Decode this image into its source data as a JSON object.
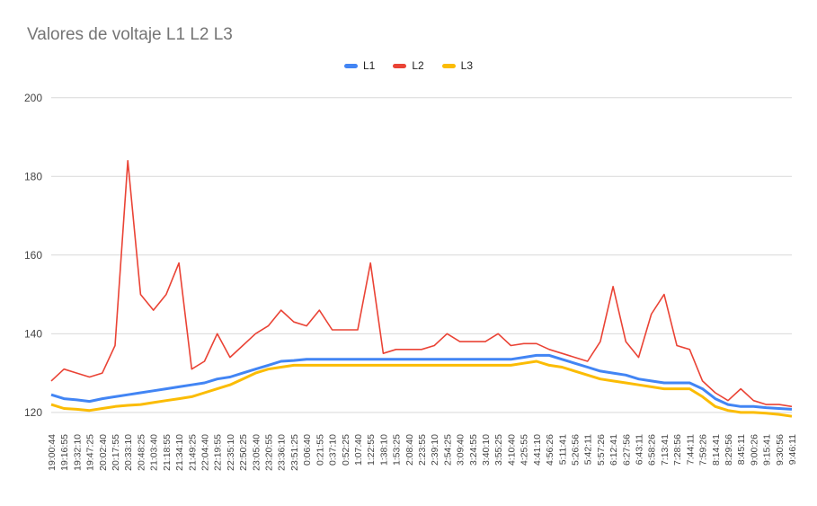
{
  "colors": {
    "L1": "#4285f4",
    "L2": "#ea4335",
    "L3": "#fbbc04",
    "grid": "#d9d9d9",
    "axis_text": "#444444"
  },
  "chart_data": {
    "type": "line",
    "title": "Valores de voltaje L1 L2 L3",
    "xlabel": "",
    "ylabel": "",
    "ylim": [
      117,
      202
    ],
    "yticks": [
      120,
      140,
      160,
      180,
      200
    ],
    "grid": true,
    "legend_position": "top-center",
    "x": [
      "19:00:44",
      "19:16:55",
      "19:32:10",
      "19:47:25",
      "20:02:40",
      "20:17:55",
      "20:33:10",
      "20:48:25",
      "21:03:40",
      "21:18:55",
      "21:34:10",
      "21:49:25",
      "22:04:40",
      "22:19:55",
      "22:35:10",
      "22:50:25",
      "23:05:40",
      "23:20:55",
      "23:36:10",
      "23:51:25",
      "0:06:40",
      "0:21:55",
      "0:37:10",
      "0:52:25",
      "1:07:40",
      "1:22:55",
      "1:38:10",
      "1:53:25",
      "2:08:40",
      "2:23:55",
      "2:39:10",
      "2:54:25",
      "3:09:40",
      "3:24:55",
      "3:40:10",
      "3:55:25",
      "4:10:40",
      "4:25:55",
      "4:41:10",
      "4:56:26",
      "5:11:41",
      "5:26:56",
      "5:42:11",
      "5:57:26",
      "6:12:41",
      "6:27:56",
      "6:43:11",
      "6:58:26",
      "7:13:41",
      "7:28:56",
      "7:44:11",
      "7:59:26",
      "8:14:41",
      "8:29:56",
      "8:45:11",
      "9:00:26",
      "9:15:41",
      "9:30:56",
      "9:46:11"
    ],
    "series": [
      {
        "name": "L1",
        "values": [
          124.5,
          123.5,
          123.2,
          122.8,
          123.5,
          124,
          124.5,
          125,
          125.5,
          126,
          126.5,
          127,
          127.5,
          128.5,
          129,
          130,
          131,
          132,
          133,
          133.2,
          133.5,
          133.5,
          133.5,
          133.5,
          133.5,
          133.5,
          133.5,
          133.5,
          133.5,
          133.5,
          133.5,
          133.5,
          133.5,
          133.5,
          133.5,
          133.5,
          133.5,
          134,
          134.5,
          134.5,
          133.5,
          132.5,
          131.5,
          130.5,
          130,
          129.5,
          128.5,
          128,
          127.5,
          127.5,
          127.5,
          126,
          123.5,
          122,
          121.5,
          121.5,
          121.2,
          121,
          120.8
        ]
      },
      {
        "name": "L2",
        "values": [
          128,
          131,
          130,
          129,
          130,
          137,
          184,
          150,
          146,
          150,
          158,
          131,
          133,
          140,
          134,
          137,
          140,
          142,
          146,
          143,
          142,
          146,
          141,
          141,
          141,
          158,
          135,
          136,
          136,
          136,
          137,
          140,
          138,
          138,
          138,
          140,
          137,
          137.5,
          137.5,
          136,
          135,
          134,
          133,
          138,
          152,
          138,
          134,
          145,
          150,
          137,
          136,
          128,
          125,
          123,
          126,
          123,
          122,
          122,
          121.5
        ]
      },
      {
        "name": "L3",
        "values": [
          122,
          121,
          120.8,
          120.5,
          121,
          121.5,
          121.8,
          122,
          122.5,
          123,
          123.5,
          124,
          125,
          126,
          127,
          128.5,
          130,
          131,
          131.5,
          132,
          132,
          132,
          132,
          132,
          132,
          132,
          132,
          132,
          132,
          132,
          132,
          132,
          132,
          132,
          132,
          132,
          132,
          132.5,
          133,
          132,
          131.5,
          130.5,
          129.5,
          128.5,
          128,
          127.5,
          127,
          126.5,
          126,
          126,
          126,
          124,
          121.5,
          120.5,
          120,
          120,
          119.8,
          119.5,
          119
        ]
      }
    ]
  }
}
